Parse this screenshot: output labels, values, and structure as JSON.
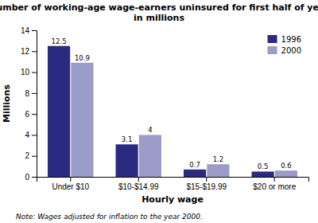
{
  "chart_data": {
    "type": "bar",
    "title": "Number of working-age wage-earners uninsured for first half of year\nin millions",
    "categories": [
      "Under $10",
      "$10-$14.99",
      "$15-$19.99",
      "$20 or more"
    ],
    "series": [
      {
        "name": "1996",
        "color": "#2a2a80",
        "values": [
          12.5,
          3.1,
          0.7,
          0.5
        ]
      },
      {
        "name": "2000",
        "color": "#9b9bc8",
        "values": [
          10.9,
          4.0,
          1.2,
          0.6
        ]
      }
    ],
    "xlabel": "Hourly wage",
    "ylabel": "Millions",
    "ylim": [
      0,
      14
    ],
    "yticks": [
      0,
      2,
      4,
      6,
      8,
      10,
      12,
      14
    ],
    "legend": "upper right",
    "grid": false,
    "data_labels": true,
    "annotations": [
      "Note: Wages adjusted for inflation to the year 2000."
    ]
  }
}
